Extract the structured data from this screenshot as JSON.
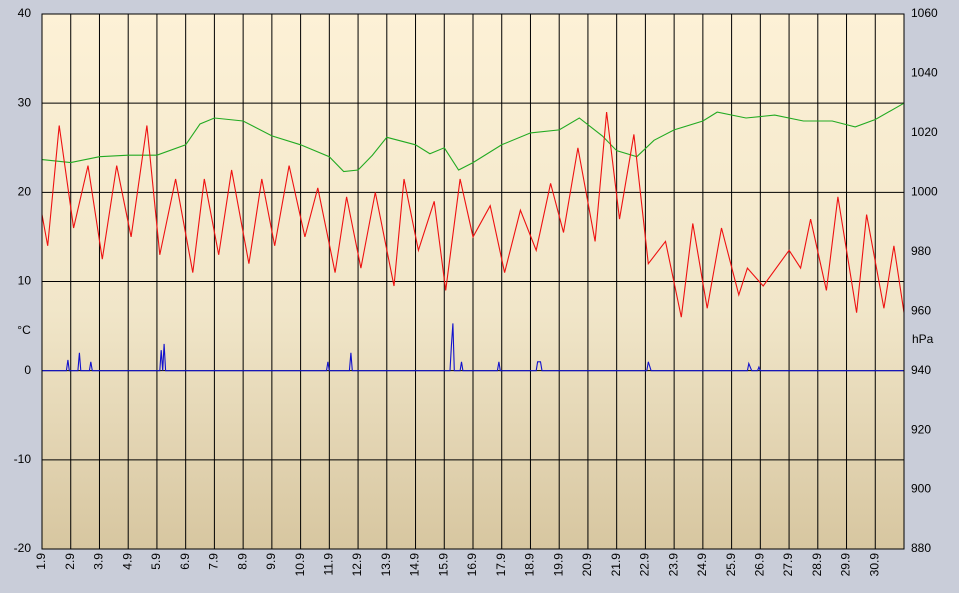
{
  "chart_data": {
    "type": "line",
    "y_label": "°C",
    "y2_label": "hPa",
    "xlim": [
      1,
      31
    ],
    "xticks": [
      {
        "value": 1,
        "label": "1.9"
      },
      {
        "value": 2,
        "label": "2.9"
      },
      {
        "value": 3,
        "label": "3.9"
      },
      {
        "value": 4,
        "label": "4.9"
      },
      {
        "value": 5,
        "label": "5.9"
      },
      {
        "value": 6,
        "label": "6.9"
      },
      {
        "value": 7,
        "label": "7.9"
      },
      {
        "value": 8,
        "label": "8.9"
      },
      {
        "value": 9,
        "label": "9.9"
      },
      {
        "value": 10,
        "label": "10.9"
      },
      {
        "value": 11,
        "label": "11.9"
      },
      {
        "value": 12,
        "label": "12.9"
      },
      {
        "value": 13,
        "label": "13.9"
      },
      {
        "value": 14,
        "label": "14.9"
      },
      {
        "value": 15,
        "label": "15.9"
      },
      {
        "value": 16,
        "label": "16.9"
      },
      {
        "value": 17,
        "label": "17.9"
      },
      {
        "value": 18,
        "label": "18.9"
      },
      {
        "value": 19,
        "label": "19.9"
      },
      {
        "value": 20,
        "label": "20.9"
      },
      {
        "value": 21,
        "label": "21.9"
      },
      {
        "value": 22,
        "label": "22.9"
      },
      {
        "value": 23,
        "label": "23.9"
      },
      {
        "value": 24,
        "label": "24.9"
      },
      {
        "value": 25,
        "label": "25.9"
      },
      {
        "value": 26,
        "label": "26.9"
      },
      {
        "value": 27,
        "label": "27.9"
      },
      {
        "value": 28,
        "label": "28.9"
      },
      {
        "value": 29,
        "label": "29.9"
      },
      {
        "value": 30,
        "label": "30.9"
      }
    ],
    "ylim": [
      -20,
      40
    ],
    "yticks": [
      -20,
      -10,
      0,
      10,
      20,
      30,
      40
    ],
    "y2lim": [
      880,
      1060
    ],
    "y2ticks": [
      880,
      900,
      920,
      940,
      960,
      980,
      1000,
      1020,
      1040,
      1060
    ],
    "grid": true,
    "series": [
      {
        "color": "#22aa22",
        "axis": "y2",
        "x": [
          1,
          2,
          3,
          4,
          5,
          6,
          6.5,
          7,
          8,
          9,
          10,
          11,
          11.5,
          12,
          12.5,
          13,
          14,
          14.5,
          15,
          15.5,
          16,
          17,
          18,
          19,
          19.7,
          20.5,
          21,
          21.7,
          22.3,
          23,
          24,
          24.5,
          25.5,
          26.5,
          27.5,
          28.5,
          29.3,
          30,
          31
        ],
        "values": [
          1011,
          1010,
          1012,
          1012.5,
          1012.5,
          1016,
          1023,
          1025,
          1024,
          1019,
          1016,
          1012,
          1007,
          1007.5,
          1012.5,
          1018.5,
          1016,
          1013,
          1015,
          1007.5,
          1010,
          1016,
          1020,
          1021,
          1025,
          1019,
          1014,
          1012,
          1017.5,
          1021,
          1024,
          1027,
          1025,
          1026,
          1024,
          1024,
          1022,
          1024.5,
          1030
        ]
      },
      {
        "color": "#ee1111",
        "x": [
          1,
          1.2,
          1.6,
          2.1,
          2.6,
          3.1,
          3.6,
          4.1,
          4.65,
          5.1,
          5.65,
          6.25,
          6.65,
          7.15,
          7.6,
          8.2,
          8.65,
          9.1,
          9.6,
          10.15,
          10.6,
          11.2,
          11.6,
          12.1,
          12.6,
          13.25,
          13.6,
          14.1,
          14.65,
          15.05,
          15.55,
          16,
          16.6,
          17.1,
          17.65,
          18.2,
          18.7,
          19.15,
          19.65,
          20.25,
          20.65,
          21.1,
          21.6,
          22.1,
          22.7,
          23.25,
          23.65,
          24.15,
          24.65,
          25.25,
          25.55,
          26.1,
          27,
          27.4,
          27.75,
          28.3,
          28.7,
          29.35,
          29.7,
          30.3,
          30.65,
          31
        ],
        "values": [
          17.5,
          14,
          27.5,
          16,
          23,
          12.5,
          23,
          15,
          27.5,
          13,
          21.5,
          11,
          21.5,
          13,
          22.5,
          12,
          21.5,
          14,
          23,
          15,
          20.5,
          11,
          19.5,
          11.5,
          20,
          9.5,
          21.5,
          13.5,
          19,
          9,
          21.5,
          15,
          18.5,
          11,
          18,
          13.5,
          21,
          15.5,
          25,
          14.5,
          29,
          17,
          26.5,
          12,
          14.5,
          6,
          16.5,
          7,
          16,
          8.5,
          11.5,
          9.5,
          13.5,
          11.5,
          17,
          9,
          19.5,
          6.5,
          17.5,
          7,
          14,
          6.5
        ]
      },
      {
        "color": "#1111cc",
        "x": [
          1,
          1.85,
          1.9,
          1.95,
          2.25,
          2.3,
          2.35,
          2.65,
          2.7,
          2.75,
          5.1,
          5.15,
          5.2,
          5.25,
          5.3,
          10.9,
          10.95,
          11,
          11.7,
          11.75,
          11.8,
          15.2,
          15.25,
          15.3,
          15.35,
          15.55,
          15.6,
          15.65,
          16.85,
          16.9,
          16.95,
          18.2,
          18.25,
          18.35,
          18.4,
          22.05,
          22.1,
          22.2,
          25.55,
          25.6,
          25.7,
          25.9,
          25.95,
          26,
          31
        ],
        "values": [
          0,
          0,
          1.2,
          0,
          0,
          2,
          0,
          0,
          1,
          0,
          0,
          2.3,
          0,
          3,
          0,
          0,
          1,
          0,
          0,
          2,
          0,
          0,
          2.8,
          5.3,
          0,
          0,
          1,
          0,
          0,
          1,
          0,
          0,
          1,
          1,
          0,
          0,
          1,
          0,
          0,
          0.8,
          0,
          0,
          0.4,
          0,
          0
        ]
      }
    ]
  }
}
